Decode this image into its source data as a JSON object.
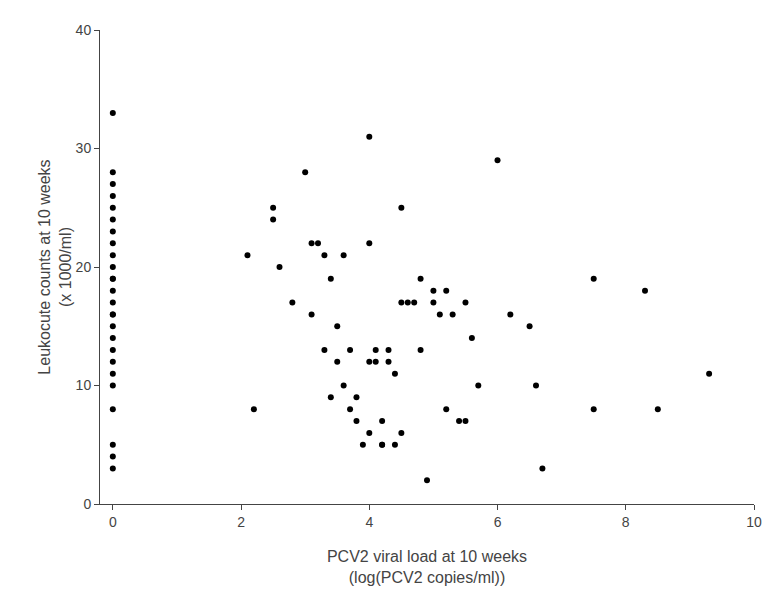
{
  "chart_data": {
    "type": "scatter",
    "xlabel": "PCV2 viral load at 10 weeks\n(log(PCV2 copies/ml))",
    "ylabel": "Leukocute counts at 10 weeks\n(x 1000/ml)",
    "x": [
      0,
      0,
      0,
      0,
      0,
      0,
      0,
      0,
      0,
      0,
      0,
      0,
      0,
      0,
      0,
      0,
      0,
      0,
      0,
      0,
      0,
      0,
      0,
      0,
      0,
      0,
      2.1,
      2.2,
      2.5,
      2.5,
      2.6,
      2.8,
      3.0,
      3.1,
      3.1,
      3.2,
      3.3,
      3.3,
      3.4,
      3.4,
      3.5,
      3.5,
      3.6,
      3.6,
      3.7,
      3.7,
      3.8,
      3.8,
      3.9,
      4.0,
      4.0,
      4.0,
      4.0,
      4.1,
      4.1,
      4.2,
      4.2,
      4.2,
      4.3,
      4.3,
      4.4,
      4.4,
      4.5,
      4.5,
      4.5,
      4.6,
      4.7,
      4.8,
      4.8,
      4.9,
      5.0,
      5.0,
      5.1,
      5.2,
      5.2,
      5.3,
      5.4,
      5.5,
      5.5,
      5.6,
      5.7,
      6.0,
      6.2,
      6.5,
      6.6,
      6.7,
      7.5,
      7.5,
      8.3,
      8.5,
      9.3
    ],
    "values": [
      33,
      28,
      27,
      26,
      25,
      24,
      23,
      22,
      21,
      20,
      19,
      19,
      18,
      17,
      16,
      16,
      15,
      14,
      13,
      12,
      11,
      10,
      8,
      5,
      4,
      3,
      21,
      8,
      25,
      24,
      20,
      17,
      28,
      22,
      16,
      22,
      21,
      13,
      9,
      19,
      15,
      12,
      21,
      10,
      13,
      8,
      7,
      9,
      5,
      31,
      22,
      12,
      6,
      12,
      13,
      5,
      5,
      7,
      12,
      13,
      11,
      5,
      25,
      17,
      6,
      17,
      17,
      19,
      13,
      2,
      18,
      17,
      16,
      18,
      8,
      16,
      7,
      17,
      7,
      14,
      10,
      29,
      16,
      15,
      10,
      3,
      19,
      8,
      18,
      8,
      11
    ],
    "color": "#000000",
    "xlim": [
      -0.2,
      10
    ],
    "ylim": [
      0,
      40
    ],
    "xticks": [
      0,
      2,
      4,
      6,
      8,
      10
    ],
    "yticks": [
      0,
      10,
      20,
      30,
      40
    ],
    "grid": false
  }
}
